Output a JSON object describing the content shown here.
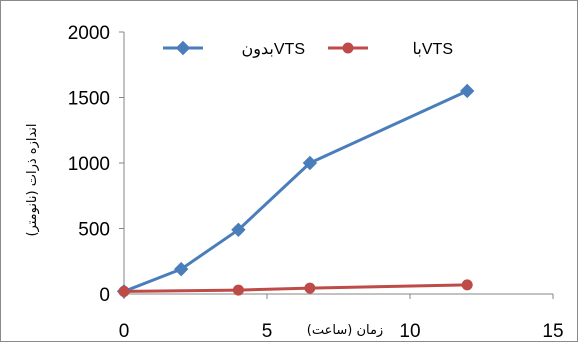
{
  "chart_data": {
    "type": "line",
    "xlabel": "زمان (ساعت)",
    "ylabel": "اندازه ذرات (نانومتر)",
    "xlim": [
      0,
      15
    ],
    "ylim": [
      0,
      2000
    ],
    "x_ticks": [
      "0",
      "5",
      "10",
      "15"
    ],
    "y_ticks": [
      "0",
      "500",
      "1000",
      "1500",
      "2000"
    ],
    "grid": false,
    "legend_position": "top",
    "series": [
      {
        "name": "بدونVTS",
        "color": "#4a7ebb",
        "marker": "diamond",
        "x": [
          0,
          2,
          4,
          6.5,
          12
        ],
        "y": [
          20,
          190,
          490,
          1000,
          1550
        ]
      },
      {
        "name": "باVTS",
        "color": "#be4b48",
        "marker": "circle",
        "x": [
          0,
          4,
          6.5,
          12
        ],
        "y": [
          20,
          30,
          45,
          70
        ]
      }
    ]
  }
}
